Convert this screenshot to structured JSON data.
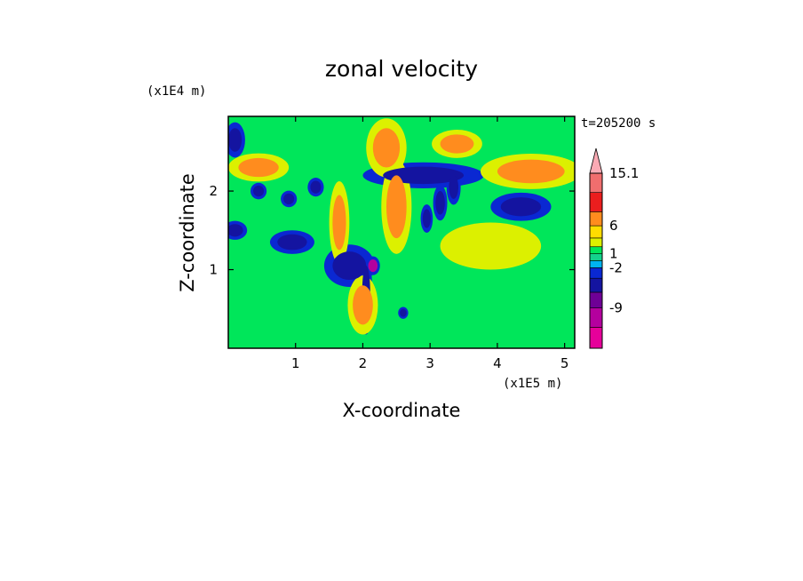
{
  "chart_data": {
    "type": "heatmap",
    "title": "zonal velocity",
    "xlabel": "X-coordinate",
    "ylabel": "Z-coordinate",
    "x_unit": "(x1E5 m)",
    "y_unit": "(x1E4 m)",
    "time_label": "t=205200 s",
    "xlim": [
      0,
      5.15
    ],
    "ylim": [
      0,
      2.95
    ],
    "x_ticks": [
      1,
      2,
      3,
      4,
      5
    ],
    "y_ticks": [
      1,
      2
    ],
    "colorbar": {
      "levels": [
        -15,
        -12,
        -9,
        -6,
        -2,
        -1,
        0,
        1,
        2,
        4,
        6,
        9,
        12,
        15.1
      ],
      "labels": [
        "15.1",
        "6",
        "1",
        "-2",
        "-9"
      ],
      "colors": [
        "#e6009a",
        "#b4009e",
        "#6e0096",
        "#1414a0",
        "#0a28d2",
        "#00b4f0",
        "#14d28c",
        "#00e65a",
        "#dcf000",
        "#ffdc00",
        "#ff8c1e",
        "#eb1e1e",
        "#f06e6e",
        "#faaab4"
      ],
      "extend": "max"
    },
    "features": [
      {
        "x": 0.1,
        "z": 2.65,
        "value": -6,
        "rx": 0.1,
        "rz": 0.15
      },
      {
        "x": 0.45,
        "z": 2.0,
        "value": -6,
        "rx": 0.08,
        "rz": 0.07
      },
      {
        "x": 0.1,
        "z": 1.5,
        "value": -6,
        "rx": 0.12,
        "rz": 0.08
      },
      {
        "x": 0.95,
        "z": 1.35,
        "value": -6,
        "rx": 0.22,
        "rz": 0.1
      },
      {
        "x": 0.9,
        "z": 1.9,
        "value": -6,
        "rx": 0.08,
        "rz": 0.07
      },
      {
        "x": 1.3,
        "z": 2.05,
        "value": -6,
        "rx": 0.08,
        "rz": 0.08
      },
      {
        "x": 1.8,
        "z": 1.05,
        "value": -6,
        "rx": 0.25,
        "rz": 0.18
      },
      {
        "x": 2.15,
        "z": 1.05,
        "value": -12,
        "rx": 0.07,
        "rz": 0.08
      },
      {
        "x": 2.05,
        "z": 0.7,
        "value": -6,
        "rx": 0.06,
        "rz": 0.35
      },
      {
        "x": 2.9,
        "z": 2.2,
        "value": -6,
        "rx": 0.6,
        "rz": 0.11
      },
      {
        "x": 2.95,
        "z": 1.65,
        "value": -6,
        "rx": 0.06,
        "rz": 0.12
      },
      {
        "x": 3.15,
        "z": 1.85,
        "value": -6,
        "rx": 0.07,
        "rz": 0.15
      },
      {
        "x": 3.35,
        "z": 2.05,
        "value": -6,
        "rx": 0.07,
        "rz": 0.15
      },
      {
        "x": 4.35,
        "z": 1.8,
        "value": -6,
        "rx": 0.3,
        "rz": 0.12
      },
      {
        "x": 2.6,
        "z": 0.45,
        "value": -6,
        "rx": 0.05,
        "rz": 0.05
      },
      {
        "x": 0.45,
        "z": 2.3,
        "value": 6,
        "rx": 0.3,
        "rz": 0.12
      },
      {
        "x": 1.65,
        "z": 1.6,
        "value": 6,
        "rx": 0.1,
        "rz": 0.35
      },
      {
        "x": 2.35,
        "z": 2.55,
        "value": 6,
        "rx": 0.2,
        "rz": 0.25
      },
      {
        "x": 2.5,
        "z": 1.8,
        "value": 6,
        "rx": 0.15,
        "rz": 0.4
      },
      {
        "x": 3.4,
        "z": 2.6,
        "value": 6,
        "rx": 0.25,
        "rz": 0.12
      },
      {
        "x": 4.5,
        "z": 2.25,
        "value": 6,
        "rx": 0.5,
        "rz": 0.15
      },
      {
        "x": 2.0,
        "z": 0.55,
        "value": 6,
        "rx": 0.15,
        "rz": 0.25
      },
      {
        "x": 3.9,
        "z": 1.3,
        "value": 2,
        "rx": 0.5,
        "rz": 0.2
      }
    ]
  }
}
